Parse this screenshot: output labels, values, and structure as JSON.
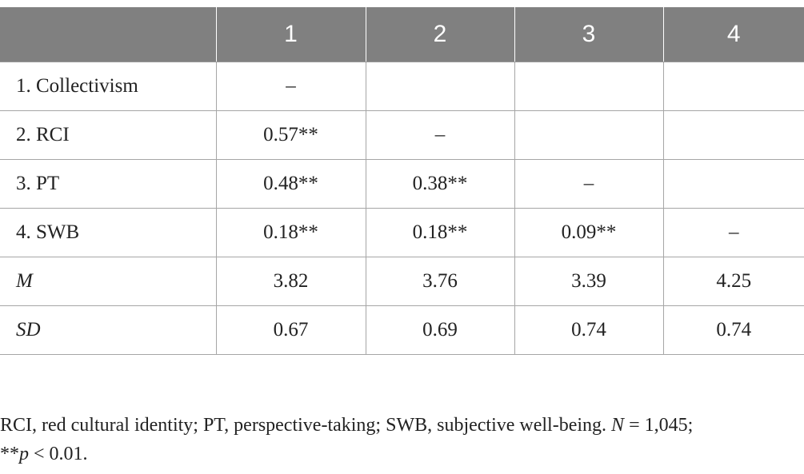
{
  "table": {
    "headers": [
      "",
      "1",
      "2",
      "3",
      "4"
    ],
    "rows": [
      {
        "label": "1. Collectivism",
        "cells": [
          "–",
          "",
          "",
          ""
        ]
      },
      {
        "label": "2. RCI",
        "cells": [
          "0.57**",
          "–",
          "",
          ""
        ]
      },
      {
        "label": "3. PT",
        "cells": [
          "0.48**",
          "0.38**",
          "–",
          ""
        ]
      },
      {
        "label": "4. SWB",
        "cells": [
          "0.18**",
          "0.18**",
          "0.09**",
          "–"
        ]
      },
      {
        "label": "M",
        "cells": [
          "3.82",
          "3.76",
          "3.39",
          "4.25"
        ]
      },
      {
        "label": "SD",
        "cells": [
          "0.67",
          "0.69",
          "0.74",
          "0.74"
        ]
      }
    ]
  },
  "note": {
    "text1": "RCI, red cultural identity; PT, perspective-taking; SWB, subjective well-being. ",
    "n_label": "N",
    "text2": " = 1,045;",
    "stars": "**",
    "p_label": "p",
    "text3": " < 0.01."
  }
}
